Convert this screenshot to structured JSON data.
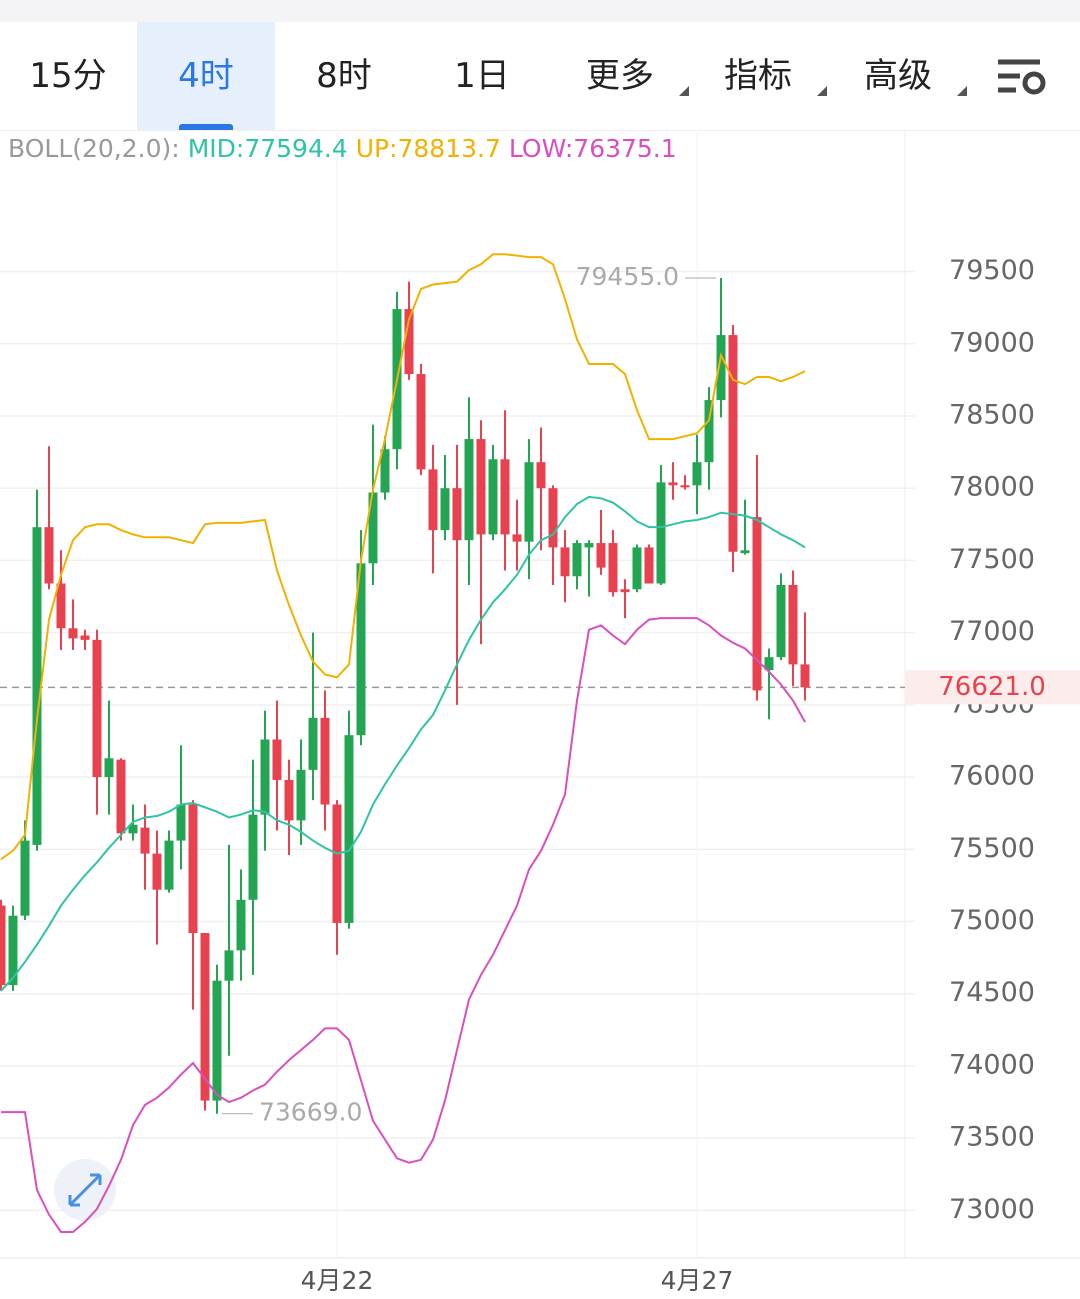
{
  "tabs": {
    "items": [
      "15分",
      "4时",
      "8时",
      "1日",
      "更多",
      "指标",
      "高级"
    ],
    "selected": 1,
    "dropdown_from": 4
  },
  "chart_data": {
    "type": "candlestick",
    "indicator": "BOLL(20,2.0):",
    "categories": [
      null,
      null,
      null,
      null,
      null,
      null,
      null,
      null,
      null,
      null,
      null,
      null,
      null,
      null,
      null,
      null,
      null,
      null,
      null,
      null,
      null,
      null,
      null,
      null,
      null,
      null,
      null,
      null,
      "4月22",
      null,
      null,
      null,
      null,
      null,
      null,
      null,
      null,
      null,
      null,
      null,
      null,
      null,
      null,
      null,
      null,
      null,
      null,
      null,
      null,
      null,
      null,
      null,
      null,
      null,
      null,
      null,
      null,
      null,
      "4月27",
      null,
      null,
      null,
      null,
      null,
      null,
      null,
      null,
      null
    ],
    "open": [
      75110,
      74560,
      75040,
      75530,
      77730,
      77340,
      77030,
      76980,
      76950,
      76000,
      76120,
      75610,
      75650,
      75470,
      75220,
      75560,
      75810,
      74920,
      73760,
      74590,
      74800,
      75150,
      75740,
      76260,
      75980,
      75700,
      76050,
      76410,
      75810,
      74990,
      76290,
      77480,
      77970,
      78270,
      79240,
      78790,
      78130,
      77710,
      78000,
      77640,
      78340,
      77680,
      78200,
      77680,
      77630,
      78180,
      78000,
      77590,
      77390,
      77590,
      77620,
      77620,
      77300,
      77300,
      77590,
      77340,
      78040,
      78020,
      78020,
      78180,
      78610,
      79060,
      77550,
      77800,
      76740,
      76830,
      77330,
      76780
    ],
    "high": [
      75150,
      75110,
      75700,
      77990,
      78290,
      77570,
      77230,
      77020,
      77020,
      76530,
      76130,
      75810,
      75810,
      75630,
      75630,
      76220,
      75840,
      74920,
      74700,
      75530,
      75360,
      76120,
      76460,
      76530,
      76120,
      76260,
      77000,
      76600,
      75840,
      76460,
      77710,
      78440,
      78360,
      79360,
      79430,
      78860,
      78300,
      78230,
      78300,
      78630,
      78470,
      78300,
      78540,
      77920,
      78340,
      78420,
      78020,
      77710,
      77640,
      77640,
      77850,
      77710,
      77370,
      77610,
      77610,
      78160,
      78180,
      78090,
      78370,
      78700,
      79455,
      79130,
      77920,
      78230,
      76890,
      77410,
      77430,
      77140
    ],
    "low": [
      74520,
      74520,
      75010,
      75490,
      77300,
      76880,
      76880,
      76880,
      75740,
      75740,
      75560,
      75560,
      75220,
      74840,
      75200,
      75360,
      74390,
      73690,
      73669,
      74070,
      74590,
      74630,
      75490,
      75630,
      75460,
      75530,
      75840,
      75630,
      74770,
      74950,
      76220,
      77330,
      77920,
      78130,
      78750,
      78090,
      77410,
      77640,
      76500,
      77330,
      76920,
      77640,
      77430,
      77430,
      77370,
      77570,
      77330,
      77210,
      77300,
      77250,
      77400,
      77250,
      77100,
      77280,
      77340,
      77330,
      77920,
      77990,
      77820,
      77990,
      78490,
      77420,
      77540,
      76530,
      76400,
      76810,
      76630,
      76530
    ],
    "close": [
      74560,
      75040,
      75560,
      77730,
      77340,
      77030,
      76960,
      76950,
      76000,
      76130,
      75610,
      75670,
      75470,
      75220,
      75560,
      75810,
      74920,
      73760,
      74590,
      74800,
      75150,
      75740,
      76260,
      75980,
      75700,
      76050,
      76410,
      75810,
      74990,
      76290,
      77480,
      77970,
      78270,
      79240,
      78790,
      78130,
      77710,
      78000,
      77640,
      78340,
      77680,
      78200,
      77680,
      77630,
      78180,
      78000,
      77590,
      77390,
      77620,
      77620,
      77450,
      77280,
      77280,
      77590,
      77340,
      78040,
      78020,
      78010,
      78180,
      78610,
      79060,
      77560,
      77570,
      76600,
      76830,
      77330,
      76780,
      76621
    ],
    "up_color": "#23a553",
    "down_color": "#e8414f",
    "series": [
      {
        "name": "MID:77594.4",
        "color": "#2ec4a5",
        "values": [
          74520,
          74610,
          74720,
          74840,
          74970,
          75110,
          75220,
          75320,
          75410,
          75510,
          75600,
          75690,
          75720,
          75730,
          75760,
          75810,
          75820,
          75790,
          75760,
          75720,
          75740,
          75770,
          75760,
          75700,
          75670,
          75620,
          75560,
          75510,
          75470,
          75490,
          75620,
          75810,
          75950,
          76080,
          76200,
          76330,
          76430,
          76600,
          76780,
          76950,
          77090,
          77210,
          77300,
          77400,
          77540,
          77640,
          77680,
          77800,
          77890,
          77940,
          77930,
          77900,
          77840,
          77770,
          77730,
          77730,
          77750,
          77770,
          77780,
          77800,
          77830,
          77820,
          77810,
          77780,
          77730,
          77680,
          77640,
          77590
        ]
      },
      {
        "name": "UP:78813.7",
        "color": "#f2b100",
        "values": [
          75430,
          75490,
          75600,
          76400,
          77090,
          77400,
          77640,
          77730,
          77750,
          77750,
          77710,
          77680,
          77660,
          77660,
          77660,
          77640,
          77620,
          77750,
          77760,
          77760,
          77760,
          77770,
          77780,
          77430,
          77190,
          76980,
          76800,
          76710,
          76690,
          76780,
          77500,
          77990,
          78340,
          78750,
          79170,
          79380,
          79410,
          79420,
          79430,
          79510,
          79550,
          79620,
          79620,
          79610,
          79600,
          79600,
          79550,
          79310,
          79030,
          78860,
          78860,
          78860,
          78790,
          78540,
          78340,
          78340,
          78340,
          78360,
          78380,
          78470,
          78920,
          78750,
          78720,
          78770,
          78770,
          78740,
          78770,
          78810
        ]
      },
      {
        "name": "LOW:76375.1",
        "color": "#d94fbf",
        "values": [
          73680,
          73680,
          73680,
          73140,
          72970,
          72850,
          72850,
          72920,
          73010,
          73170,
          73350,
          73590,
          73730,
          73780,
          73850,
          73940,
          74020,
          73910,
          73800,
          73750,
          73780,
          73830,
          73870,
          73960,
          74040,
          74110,
          74180,
          74260,
          74260,
          74180,
          73900,
          73620,
          73490,
          73360,
          73330,
          73350,
          73490,
          73760,
          74110,
          74460,
          74630,
          74770,
          74940,
          75110,
          75360,
          75490,
          75670,
          75880,
          76530,
          77020,
          77050,
          76980,
          76920,
          77020,
          77090,
          77100,
          77100,
          77100,
          77100,
          77050,
          76980,
          76930,
          76890,
          76810,
          76730,
          76640,
          76530,
          76380
        ]
      }
    ],
    "annotations": [
      {
        "label": "79455.0",
        "value": 79455,
        "candle": 60
      },
      {
        "label": "73669.0",
        "value": 73669,
        "candle": 18
      }
    ],
    "current_price": {
      "value": 76621,
      "label": "76621.0"
    },
    "ylim": [
      72670,
      80480
    ],
    "yticks": [
      73000,
      73500,
      74000,
      74500,
      75000,
      75500,
      76000,
      76500,
      77000,
      77500,
      78000,
      78500,
      79000,
      79500
    ],
    "grid": true
  }
}
